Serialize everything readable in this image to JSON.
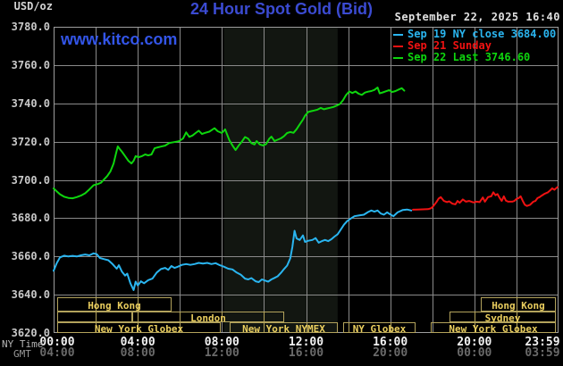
{
  "header": {
    "unit_label": "USD/oz",
    "title": "24 Hour Spot Gold (Bid)",
    "title_color": "#3b4bd2",
    "datetime": "September 22, 2025 16:40",
    "watermark": "www.kitco.com",
    "watermark_color": "#3355e8"
  },
  "legend": {
    "entries": [
      {
        "label": "Sep 19 NY close 3684.00",
        "color": "#2ab5f0"
      },
      {
        "label": "Sep 21 Sunday",
        "color": "#f01212"
      },
      {
        "label": "Sep 22 Last 3746.60",
        "color": "#0ed60e"
      }
    ]
  },
  "axes": {
    "ny_time_label": "NY Time",
    "gmt_label": "GMT",
    "y_ticks": [
      "3780.0",
      "3760.0",
      "3740.0",
      "3720.0",
      "3700.0",
      "3680.0",
      "3660.0",
      "3640.0",
      "3620.0"
    ],
    "x_ticks_ny": [
      "00:00",
      "04:00",
      "08:00",
      "12:00",
      "16:00",
      "20:00",
      "23:59"
    ],
    "x_ticks_gmt": [
      "04:00",
      "08:00",
      "12:00",
      "16:00",
      "20:00",
      "00:00",
      "03:59"
    ]
  },
  "sessions": {
    "box_color": "#b3a35c",
    "label_color": "#eace5e",
    "rows": [
      {
        "row": 0,
        "start_h": 0.17,
        "end_h": 5.6,
        "label": "Hong Kong"
      },
      {
        "row": 0,
        "start_h": 20.3,
        "end_h": 23.87,
        "label": "Hong Kong"
      },
      {
        "row": 1,
        "start_h": 0.17,
        "end_h": 3.74,
        "label": ""
      },
      {
        "row": 1,
        "start_h": 3.74,
        "end_h": 10.96,
        "label": "London"
      },
      {
        "row": 1,
        "start_h": 18.82,
        "end_h": 23.87,
        "label": "Sydney"
      },
      {
        "row": 2,
        "start_h": 0.17,
        "end_h": 7.94,
        "label": "New York Globex"
      },
      {
        "row": 2,
        "start_h": 8.37,
        "end_h": 13.5,
        "label": "New York NYMEX"
      },
      {
        "row": 2,
        "start_h": 13.76,
        "end_h": 17.2,
        "label": "NY Globex"
      },
      {
        "row": 2,
        "start_h": 17.93,
        "end_h": 23.87,
        "label": "New York Globex"
      }
    ]
  },
  "chart_data": {
    "type": "line",
    "title": "24 Hour Spot Gold (Bid)",
    "unit": "USD/oz",
    "x_axis": {
      "label_primary": "NY Time",
      "label_secondary": "GMT",
      "range_hours": [
        0,
        24
      ],
      "gridline_every_hours": 2
    },
    "y_axis": {
      "min": 3620,
      "max": 3780,
      "tick_step": 20
    },
    "grid": true,
    "legend_position": "top-right",
    "nymex_band_hours": [
      8.1,
      13.5
    ],
    "band_color": "#121611",
    "series": [
      {
        "id": "sep19",
        "name": "Sep 19 NY close",
        "close_value": 3684.0,
        "color": "#2ab5f0",
        "points": [
          [
            0,
            3652.5
          ],
          [
            0.15,
            3656.5
          ],
          [
            0.3,
            3659.5
          ],
          [
            0.5,
            3660.4
          ],
          [
            0.7,
            3660
          ],
          [
            0.9,
            3660.3
          ],
          [
            1.1,
            3660
          ],
          [
            1.3,
            3660.6
          ],
          [
            1.5,
            3661
          ],
          [
            1.7,
            3660.6
          ],
          [
            1.9,
            3661.6
          ],
          [
            2.05,
            3661.2
          ],
          [
            2.2,
            3659.2
          ],
          [
            2.4,
            3658.6
          ],
          [
            2.6,
            3658
          ],
          [
            2.8,
            3656
          ],
          [
            3.0,
            3653.6
          ],
          [
            3.1,
            3655.4
          ],
          [
            3.25,
            3652
          ],
          [
            3.4,
            3650
          ],
          [
            3.5,
            3651
          ],
          [
            3.65,
            3646
          ],
          [
            3.8,
            3642.4
          ],
          [
            3.9,
            3646.8
          ],
          [
            4.0,
            3644.8
          ],
          [
            4.15,
            3647
          ],
          [
            4.3,
            3646
          ],
          [
            4.5,
            3647.6
          ],
          [
            4.7,
            3648.4
          ],
          [
            4.9,
            3651.6
          ],
          [
            5.1,
            3653.4
          ],
          [
            5.3,
            3654
          ],
          [
            5.45,
            3653
          ],
          [
            5.6,
            3655
          ],
          [
            5.75,
            3654
          ],
          [
            5.9,
            3654.6
          ],
          [
            6.1,
            3655.6
          ],
          [
            6.3,
            3656
          ],
          [
            6.5,
            3655.6
          ],
          [
            6.7,
            3656
          ],
          [
            6.9,
            3656.6
          ],
          [
            7.1,
            3656.3
          ],
          [
            7.3,
            3656.6
          ],
          [
            7.5,
            3656
          ],
          [
            7.7,
            3656.5
          ],
          [
            7.9,
            3655.4
          ],
          [
            8.1,
            3654.6
          ],
          [
            8.3,
            3653.6
          ],
          [
            8.5,
            3653.2
          ],
          [
            8.7,
            3651.6
          ],
          [
            8.9,
            3650.4
          ],
          [
            9.1,
            3648.4
          ],
          [
            9.25,
            3648
          ],
          [
            9.4,
            3648.7
          ],
          [
            9.6,
            3647
          ],
          [
            9.75,
            3646.6
          ],
          [
            9.9,
            3648
          ],
          [
            10.05,
            3647.4
          ],
          [
            10.2,
            3646.8
          ],
          [
            10.35,
            3648
          ],
          [
            10.5,
            3648.8
          ],
          [
            10.65,
            3649.6
          ],
          [
            10.8,
            3651.4
          ],
          [
            10.95,
            3653.4
          ],
          [
            11.1,
            3655.2
          ],
          [
            11.25,
            3659
          ],
          [
            11.35,
            3665
          ],
          [
            11.45,
            3673.4
          ],
          [
            11.55,
            3669.4
          ],
          [
            11.7,
            3668.6
          ],
          [
            11.85,
            3671
          ],
          [
            11.95,
            3667.6
          ],
          [
            12.1,
            3668.2
          ],
          [
            12.3,
            3668.6
          ],
          [
            12.45,
            3669.6
          ],
          [
            12.6,
            3667.2
          ],
          [
            12.75,
            3668
          ],
          [
            12.9,
            3668.6
          ],
          [
            13.05,
            3668
          ],
          [
            13.2,
            3669
          ],
          [
            13.35,
            3670.4
          ],
          [
            13.5,
            3671.6
          ],
          [
            13.65,
            3674
          ],
          [
            13.8,
            3676.6
          ],
          [
            13.95,
            3678.4
          ],
          [
            14.1,
            3679.6
          ],
          [
            14.3,
            3681
          ],
          [
            14.5,
            3681.4
          ],
          [
            14.75,
            3681.8
          ],
          [
            14.95,
            3683.2
          ],
          [
            15.1,
            3684
          ],
          [
            15.25,
            3683.4
          ],
          [
            15.4,
            3684
          ],
          [
            15.55,
            3682.4
          ],
          [
            15.7,
            3681.8
          ],
          [
            15.85,
            3683
          ],
          [
            16.0,
            3682
          ],
          [
            16.15,
            3681
          ],
          [
            16.35,
            3683
          ],
          [
            16.6,
            3684.3
          ],
          [
            16.8,
            3684.5
          ],
          [
            17.0,
            3684
          ]
        ]
      },
      {
        "id": "sep21",
        "name": "Sep 21 Sunday",
        "color": "#f01212",
        "points": [
          [
            17.08,
            3684.4
          ],
          [
            17.3,
            3684.5
          ],
          [
            17.55,
            3684.6
          ],
          [
            17.8,
            3684.7
          ],
          [
            17.95,
            3685.2
          ],
          [
            18.05,
            3686.3
          ],
          [
            18.2,
            3688.5
          ],
          [
            18.3,
            3690.2
          ],
          [
            18.4,
            3691
          ],
          [
            18.55,
            3689
          ],
          [
            18.7,
            3688.4
          ],
          [
            18.8,
            3688.8
          ],
          [
            18.95,
            3687.6
          ],
          [
            19.1,
            3687.2
          ],
          [
            19.2,
            3689
          ],
          [
            19.3,
            3688
          ],
          [
            19.45,
            3689.8
          ],
          [
            19.6,
            3688.6
          ],
          [
            19.75,
            3689
          ],
          [
            19.96,
            3688.2
          ],
          [
            20.1,
            3688.6
          ],
          [
            20.25,
            3688.4
          ],
          [
            20.4,
            3690.8
          ],
          [
            20.5,
            3688.6
          ],
          [
            20.65,
            3691
          ],
          [
            20.8,
            3691.4
          ],
          [
            20.9,
            3693.5
          ],
          [
            21.0,
            3692
          ],
          [
            21.1,
            3692.6
          ],
          [
            21.2,
            3690.6
          ],
          [
            21.3,
            3689
          ],
          [
            21.4,
            3691.4
          ],
          [
            21.5,
            3689.2
          ],
          [
            21.6,
            3688.6
          ],
          [
            21.8,
            3688.6
          ],
          [
            21.9,
            3689
          ],
          [
            22.0,
            3690
          ],
          [
            22.1,
            3690.5
          ],
          [
            22.2,
            3691.4
          ],
          [
            22.3,
            3689
          ],
          [
            22.4,
            3687
          ],
          [
            22.5,
            3686.4
          ],
          [
            22.65,
            3687
          ],
          [
            22.8,
            3688.6
          ],
          [
            22.9,
            3689
          ],
          [
            23.0,
            3690.5
          ],
          [
            23.1,
            3691
          ],
          [
            23.2,
            3691.8
          ],
          [
            23.35,
            3692.8
          ],
          [
            23.5,
            3693.5
          ],
          [
            23.6,
            3694.5
          ],
          [
            23.7,
            3695.6
          ],
          [
            23.8,
            3694.8
          ],
          [
            23.95,
            3696.2
          ]
        ]
      },
      {
        "id": "sep22",
        "name": "Sep 22",
        "last_value": 3746.6,
        "color": "#0ed60e",
        "points": [
          [
            0,
            3695.5
          ],
          [
            0.15,
            3694
          ],
          [
            0.3,
            3692.5
          ],
          [
            0.5,
            3691.2
          ],
          [
            0.7,
            3690.6
          ],
          [
            0.9,
            3690.4
          ],
          [
            1.1,
            3691
          ],
          [
            1.3,
            3691.8
          ],
          [
            1.5,
            3693
          ],
          [
            1.7,
            3695
          ],
          [
            1.9,
            3697.2
          ],
          [
            2.1,
            3697.8
          ],
          [
            2.25,
            3698.5
          ],
          [
            2.4,
            3700.3
          ],
          [
            2.55,
            3702
          ],
          [
            2.7,
            3704.5
          ],
          [
            2.85,
            3708.5
          ],
          [
            2.95,
            3713
          ],
          [
            3.05,
            3717.5
          ],
          [
            3.15,
            3716
          ],
          [
            3.25,
            3714.7
          ],
          [
            3.4,
            3712.4
          ],
          [
            3.55,
            3710
          ],
          [
            3.7,
            3708.6
          ],
          [
            3.8,
            3710
          ],
          [
            3.9,
            3712.4
          ],
          [
            4.05,
            3711.9
          ],
          [
            4.2,
            3712.4
          ],
          [
            4.35,
            3713.3
          ],
          [
            4.5,
            3712.8
          ],
          [
            4.65,
            3713.3
          ],
          [
            4.8,
            3716.5
          ],
          [
            4.95,
            3717
          ],
          [
            5.1,
            3717.4
          ],
          [
            5.3,
            3717.9
          ],
          [
            5.5,
            3719.3
          ],
          [
            5.7,
            3719.7
          ],
          [
            5.95,
            3720.2
          ],
          [
            6.15,
            3721.6
          ],
          [
            6.3,
            3724.8
          ],
          [
            6.45,
            3722.5
          ],
          [
            6.6,
            3723.2
          ],
          [
            6.75,
            3724.5
          ],
          [
            6.9,
            3725.7
          ],
          [
            7.05,
            3724
          ],
          [
            7.2,
            3724.6
          ],
          [
            7.4,
            3725.2
          ],
          [
            7.65,
            3727
          ],
          [
            7.8,
            3725.4
          ],
          [
            8.0,
            3724.5
          ],
          [
            8.15,
            3726.4
          ],
          [
            8.35,
            3720.8
          ],
          [
            8.5,
            3718
          ],
          [
            8.65,
            3715.6
          ],
          [
            8.8,
            3718
          ],
          [
            8.95,
            3720
          ],
          [
            9.1,
            3722.4
          ],
          [
            9.25,
            3721.5
          ],
          [
            9.4,
            3719.2
          ],
          [
            9.55,
            3718.5
          ],
          [
            9.65,
            3720.3
          ],
          [
            9.8,
            3718.5
          ],
          [
            9.95,
            3718
          ],
          [
            10.1,
            3718.7
          ],
          [
            10.25,
            3721.5
          ],
          [
            10.35,
            3722.6
          ],
          [
            10.5,
            3720.3
          ],
          [
            10.65,
            3721
          ],
          [
            10.8,
            3721.7
          ],
          [
            10.95,
            3722.8
          ],
          [
            11.1,
            3724.5
          ],
          [
            11.25,
            3725
          ],
          [
            11.4,
            3724.6
          ],
          [
            11.55,
            3726.5
          ],
          [
            11.7,
            3729
          ],
          [
            11.85,
            3731.5
          ],
          [
            11.95,
            3733.5
          ],
          [
            12.1,
            3735.5
          ],
          [
            12.25,
            3735.9
          ],
          [
            12.4,
            3736.3
          ],
          [
            12.55,
            3736.7
          ],
          [
            12.7,
            3737.6
          ],
          [
            12.85,
            3736.9
          ],
          [
            13.0,
            3737.3
          ],
          [
            13.15,
            3737.7
          ],
          [
            13.3,
            3738.1
          ],
          [
            13.45,
            3738.8
          ],
          [
            13.6,
            3739.6
          ],
          [
            13.75,
            3741.5
          ],
          [
            13.9,
            3744.3
          ],
          [
            14.05,
            3746.2
          ],
          [
            14.2,
            3745.4
          ],
          [
            14.35,
            3746.2
          ],
          [
            14.5,
            3745
          ],
          [
            14.65,
            3744.4
          ],
          [
            14.8,
            3745.6
          ],
          [
            14.95,
            3746.1
          ],
          [
            15.1,
            3746.4
          ],
          [
            15.25,
            3747
          ],
          [
            15.4,
            3748.3
          ],
          [
            15.5,
            3745.2
          ],
          [
            15.65,
            3745.7
          ],
          [
            15.8,
            3746.3
          ],
          [
            15.95,
            3746.9
          ],
          [
            16.1,
            3745.9
          ],
          [
            16.25,
            3746.4
          ],
          [
            16.4,
            3747.2
          ],
          [
            16.55,
            3747.9
          ],
          [
            16.67,
            3746.6
          ]
        ]
      }
    ]
  }
}
